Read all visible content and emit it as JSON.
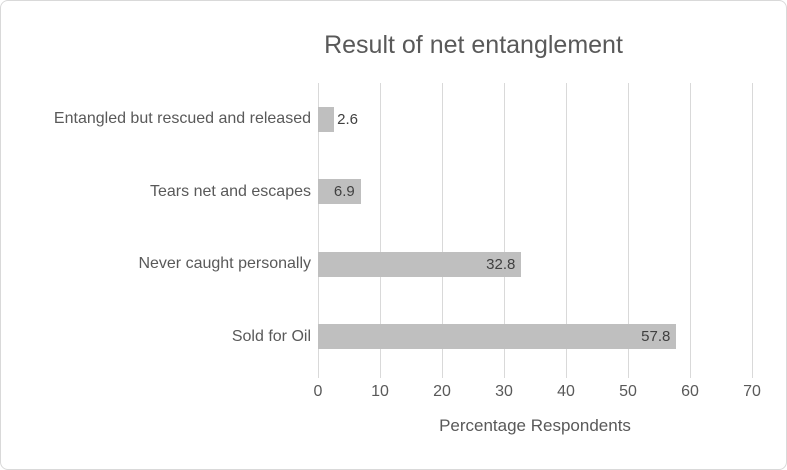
{
  "chart_data": {
    "type": "bar",
    "orientation": "horizontal",
    "title": "Result of net entanglement",
    "xlabel": "Percentage Respondents",
    "ylabel": "",
    "categories": [
      "Entangled but rescued and released",
      "Tears net and escapes",
      "Never caught personally",
      "Sold for Oil"
    ],
    "values": [
      2.6,
      6.9,
      32.8,
      57.8
    ],
    "data_labels": [
      "2.6",
      "6.9",
      "32.8",
      "57.8"
    ],
    "xlim": [
      0,
      70
    ],
    "xticks": [
      0,
      10,
      20,
      30,
      40,
      50,
      60,
      70
    ],
    "grid": "vertical",
    "legend": "none",
    "colors": {
      "bar": "#bfbfbf",
      "gridline": "#d9d9d9",
      "axis_text": "#595959",
      "title_text": "#595959",
      "data_label_text": "#404040",
      "background": "#ffffff",
      "border": "#d9d9d9"
    }
  }
}
